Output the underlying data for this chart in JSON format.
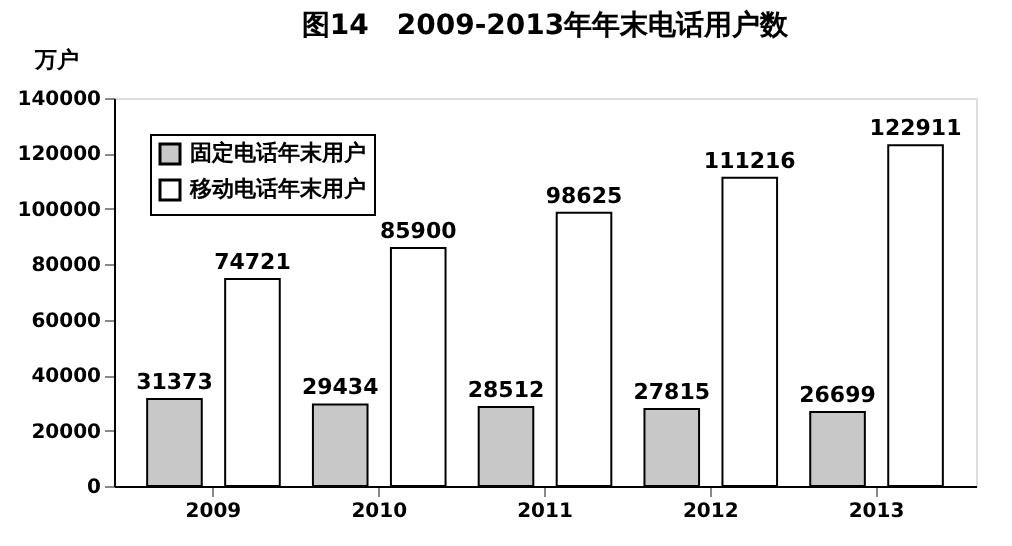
{
  "chart_data": {
    "type": "bar",
    "title": "图14　2009-2013年年末电话用户数",
    "ylabel": "万户",
    "categories": [
      "2009",
      "2010",
      "2011",
      "2012",
      "2013"
    ],
    "series": [
      {
        "name": "固定电话年末用户",
        "color": "#c8c8c8",
        "values": [
          31373,
          29434,
          28512,
          27815,
          26699
        ]
      },
      {
        "name": "移动电话年末用户",
        "color": "#ffffff",
        "values": [
          74721,
          85900,
          98625,
          111216,
          122911
        ]
      }
    ],
    "ylim": [
      0,
      140000
    ],
    "yticks": [
      0,
      20000,
      40000,
      60000,
      80000,
      100000,
      120000,
      140000
    ],
    "grid": false,
    "legend": "top left",
    "data_labels": true
  }
}
